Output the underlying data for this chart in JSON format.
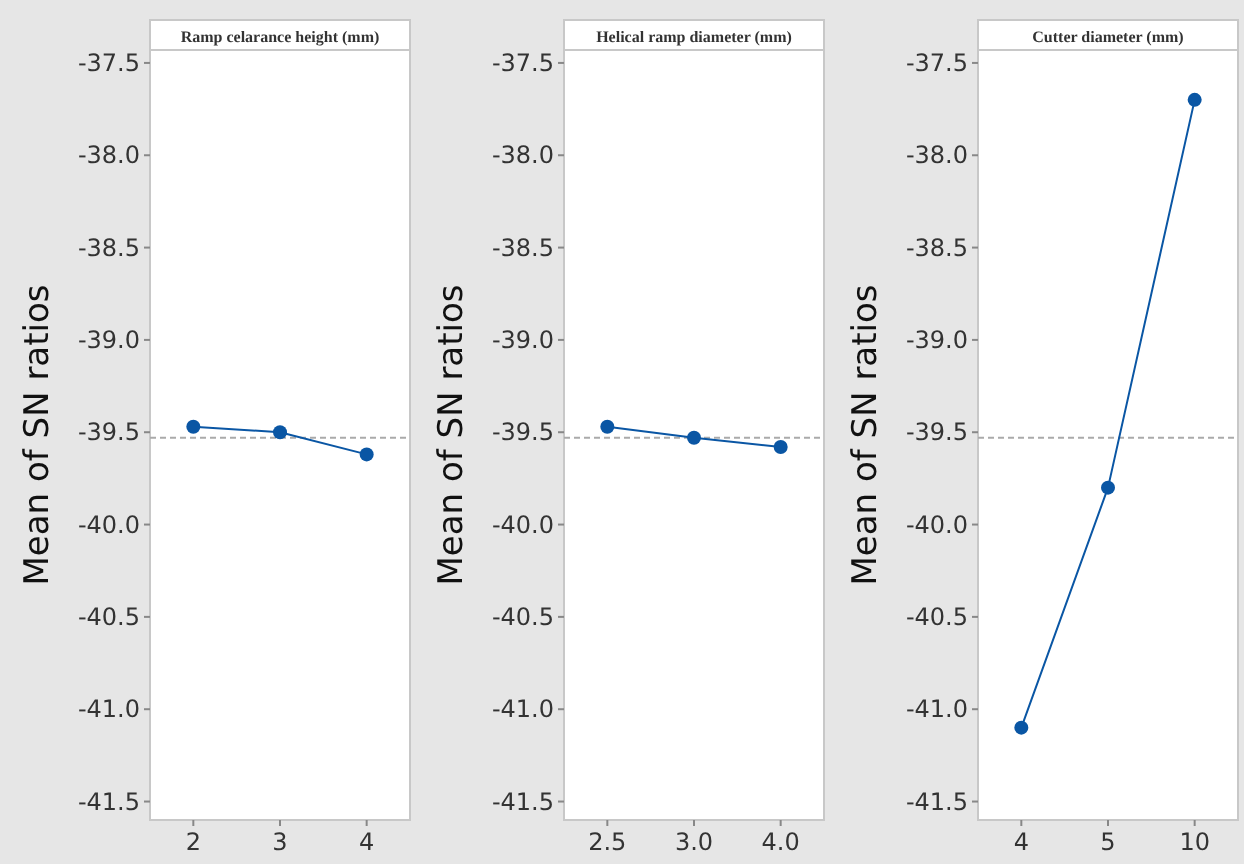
{
  "chart_data": [
    {
      "type": "line",
      "title": "Ramp celarance height (mm)",
      "ylabel": "Mean of SN ratios",
      "categories": [
        "2",
        "3",
        "4"
      ],
      "series": [
        {
          "color": "#0a56a4",
          "values": [
            -39.47,
            -39.5,
            -39.62
          ]
        }
      ],
      "ylim": [
        -41.6,
        -37.43
      ],
      "yticks": [
        {
          "value": -37.5,
          "label": "-37.5"
        },
        {
          "value": -38,
          "label": "-38.0"
        },
        {
          "value": -38.5,
          "label": "-38.5"
        },
        {
          "value": -39,
          "label": "-39.0"
        },
        {
          "value": -39.5,
          "label": "-39.5"
        },
        {
          "value": -40,
          "label": "-40.0"
        },
        {
          "value": -40.5,
          "label": "-40.5"
        },
        {
          "value": -41,
          "label": "-41.0"
        },
        {
          "value": -41.5,
          "label": "-41.5"
        }
      ],
      "ref_lines": [
        {
          "axis": "y",
          "value": -39.53,
          "color": "#aaaaaa",
          "line_style": "dashed"
        }
      ],
      "marker": "circle",
      "grid": false
    },
    {
      "type": "line",
      "title": "Helical ramp diameter (mm)",
      "ylabel": "Mean of SN ratios",
      "categories": [
        "2.5",
        "3.0",
        "4.0"
      ],
      "series": [
        {
          "color": "#0a56a4",
          "values": [
            -39.47,
            -39.53,
            -39.58
          ]
        }
      ],
      "ylim": [
        -41.6,
        -37.43
      ],
      "yticks": [
        {
          "value": -37.5,
          "label": "-37.5"
        },
        {
          "value": -38,
          "label": "-38.0"
        },
        {
          "value": -38.5,
          "label": "-38.5"
        },
        {
          "value": -39,
          "label": "-39.0"
        },
        {
          "value": -39.5,
          "label": "-39.5"
        },
        {
          "value": -40,
          "label": "-40.0"
        },
        {
          "value": -40.5,
          "label": "-40.5"
        },
        {
          "value": -41,
          "label": "-41.0"
        },
        {
          "value": -41.5,
          "label": "-41.5"
        }
      ],
      "ref_lines": [
        {
          "axis": "y",
          "value": -39.53,
          "color": "#aaaaaa",
          "line_style": "dashed"
        }
      ],
      "marker": "circle",
      "grid": false
    },
    {
      "type": "line",
      "title": "Cutter diameter (mm)",
      "ylabel": "Mean of SN ratios",
      "categories": [
        "4",
        "5",
        "10"
      ],
      "series": [
        {
          "color": "#0a56a4",
          "values": [
            -41.1,
            -39.8,
            -37.7
          ]
        }
      ],
      "ylim": [
        -41.6,
        -37.43
      ],
      "yticks": [
        {
          "value": -37.5,
          "label": "-37.5"
        },
        {
          "value": -38,
          "label": "-38.0"
        },
        {
          "value": -38.5,
          "label": "-38.5"
        },
        {
          "value": -39,
          "label": "-39.0"
        },
        {
          "value": -39.5,
          "label": "-39.5"
        },
        {
          "value": -40,
          "label": "-40.0"
        },
        {
          "value": -40.5,
          "label": "-40.5"
        },
        {
          "value": -41,
          "label": "-41.0"
        },
        {
          "value": -41.5,
          "label": "-41.5"
        }
      ],
      "ref_lines": [
        {
          "axis": "y",
          "value": -39.53,
          "color": "#aaaaaa",
          "line_style": "dashed"
        }
      ],
      "marker": "circle",
      "grid": false
    }
  ]
}
